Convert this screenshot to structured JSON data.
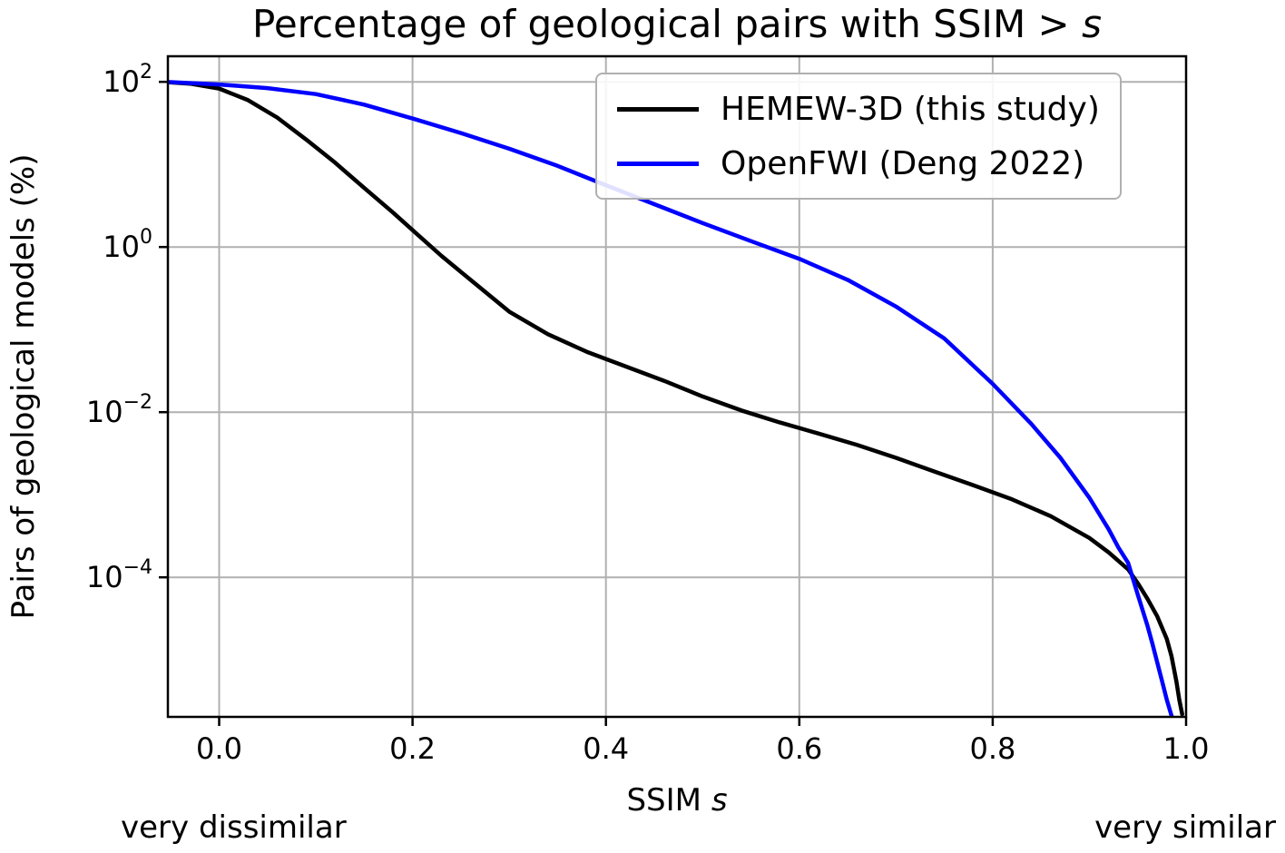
{
  "figure": {
    "title_prefix": "Percentage of geological pairs with SSIM > ",
    "title_var": "s",
    "ylabel": "Pairs of geological models (%)",
    "xlabel_prefix": "SSIM ",
    "xlabel_var": "s",
    "annotation_left": "very dissimilar",
    "annotation_right": "very similar"
  },
  "legend": {
    "position": "upper right",
    "items": [
      {
        "label": "HEMEW-3D (this study)",
        "color": "#000000"
      },
      {
        "label": "OpenFWI (Deng 2022)",
        "color": "#0000ff"
      }
    ]
  },
  "chart_data": {
    "type": "line",
    "title": "Percentage of geological pairs with SSIM > s",
    "xlabel": "SSIM s",
    "ylabel": "Pairs of geological models (%)",
    "yscale": "log",
    "grid": true,
    "legend_position": "upper right",
    "xlim": [
      -0.053,
      1.0
    ],
    "ylim_log10": [
      -5.69,
      2.31
    ],
    "xticks": [
      0.0,
      0.2,
      0.4,
      0.6,
      0.8,
      1.0
    ],
    "ytick_exponents": [
      2,
      0,
      -2,
      -4
    ],
    "annotations": [
      "very dissimilar",
      "very similar"
    ],
    "series": [
      {
        "name": "HEMEW-3D (this study)",
        "color": "#000000",
        "points": [
          [
            -0.053,
            99
          ],
          [
            -0.03,
            95
          ],
          [
            0.0,
            83
          ],
          [
            0.03,
            60
          ],
          [
            0.06,
            37
          ],
          [
            0.09,
            20
          ],
          [
            0.12,
            10.5
          ],
          [
            0.15,
            5.2
          ],
          [
            0.18,
            2.6
          ],
          [
            0.2,
            1.6
          ],
          [
            0.23,
            0.78
          ],
          [
            0.26,
            0.4
          ],
          [
            0.3,
            0.165
          ],
          [
            0.34,
            0.088
          ],
          [
            0.38,
            0.054
          ],
          [
            0.42,
            0.036
          ],
          [
            0.46,
            0.024
          ],
          [
            0.5,
            0.0155
          ],
          [
            0.54,
            0.0105
          ],
          [
            0.58,
            0.0075
          ],
          [
            0.62,
            0.0055
          ],
          [
            0.66,
            0.004
          ],
          [
            0.7,
            0.0028
          ],
          [
            0.74,
            0.0019
          ],
          [
            0.78,
            0.0013
          ],
          [
            0.82,
            0.00088
          ],
          [
            0.86,
            0.00055
          ],
          [
            0.9,
            0.0003
          ],
          [
            0.92,
            0.0002
          ],
          [
            0.94,
            0.000125
          ],
          [
            0.95,
            8.5e-05
          ],
          [
            0.96,
            5.5e-05
          ],
          [
            0.97,
            3.4e-05
          ],
          [
            0.98,
            1.8e-05
          ],
          [
            0.985,
            1.1e-05
          ],
          [
            0.99,
            5.5e-06
          ],
          [
            0.993,
            3.3e-06
          ],
          [
            0.996,
            2.2e-06
          ]
        ]
      },
      {
        "name": "OpenFWI (Deng 2022)",
        "color": "#0000ff",
        "points": [
          [
            -0.053,
            99.5
          ],
          [
            0.0,
            93
          ],
          [
            0.05,
            84
          ],
          [
            0.1,
            71
          ],
          [
            0.15,
            53
          ],
          [
            0.2,
            36
          ],
          [
            0.25,
            24
          ],
          [
            0.3,
            15.5
          ],
          [
            0.35,
            9.6
          ],
          [
            0.4,
            5.6
          ],
          [
            0.45,
            3.3
          ],
          [
            0.5,
            1.95
          ],
          [
            0.55,
            1.18
          ],
          [
            0.6,
            0.72
          ],
          [
            0.65,
            0.4
          ],
          [
            0.7,
            0.19
          ],
          [
            0.75,
            0.078
          ],
          [
            0.8,
            0.022
          ],
          [
            0.84,
            0.0072
          ],
          [
            0.87,
            0.0028
          ],
          [
            0.9,
            0.00092
          ],
          [
            0.92,
            0.00038
          ],
          [
            0.93,
            0.00023
          ],
          [
            0.94,
            0.00015
          ],
          [
            0.95,
            6.2e-05
          ],
          [
            0.96,
            2.6e-05
          ],
          [
            0.965,
            1.6e-05
          ],
          [
            0.97,
            9.5e-06
          ],
          [
            0.975,
            5.6e-06
          ],
          [
            0.98,
            3.3e-06
          ],
          [
            0.985,
            2.1e-06
          ]
        ]
      }
    ]
  }
}
